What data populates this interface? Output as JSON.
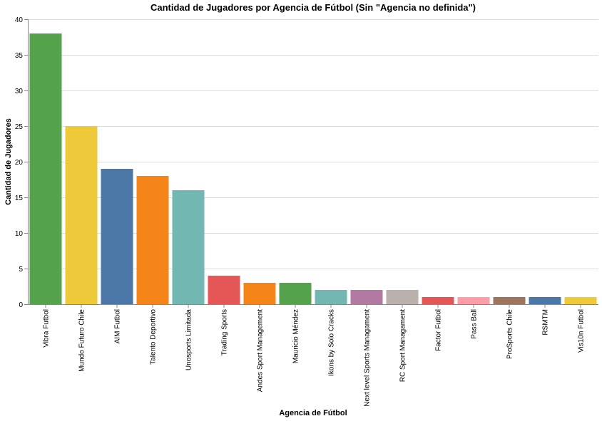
{
  "chart_data": {
    "type": "bar",
    "title": "Cantidad de Jugadores por Agencia de Fútbol (Sin \"Agencia no definida\")",
    "xlabel": "Agencia de Fútbol",
    "ylabel": "Cantidad de Jugadores",
    "ylim": [
      0,
      40
    ],
    "yticks": [
      0,
      5,
      10,
      15,
      20,
      25,
      30,
      35,
      40
    ],
    "grid": true,
    "categories": [
      "Vibra Futbol",
      "Mundo Futuro Chile",
      "AIM Futbol",
      "Talento Deportivo",
      "Unosports Limitada",
      "Trading Sports",
      "Andes Sport Management",
      "Mauricio Méndez",
      "Ikons by Solo Cracks",
      "Next level Sports Managament",
      "RC Sport Managament",
      "Factor Futbol",
      "Pass Ball",
      "ProSports Chile",
      "RSMTM",
      "Vis10n Futbol"
    ],
    "values": [
      38,
      25,
      19,
      18,
      16,
      4,
      3,
      3,
      2,
      2,
      2,
      1,
      1,
      1,
      1,
      1
    ],
    "colors": [
      "#54a24b",
      "#eeca3b",
      "#4c78a8",
      "#f58518",
      "#72b7b2",
      "#e45756",
      "#f58518",
      "#54a24b",
      "#72b7b2",
      "#b279a2",
      "#bab0ac",
      "#e45756",
      "#ff9da6",
      "#9d755d",
      "#4c78a8",
      "#eeca3b"
    ]
  }
}
